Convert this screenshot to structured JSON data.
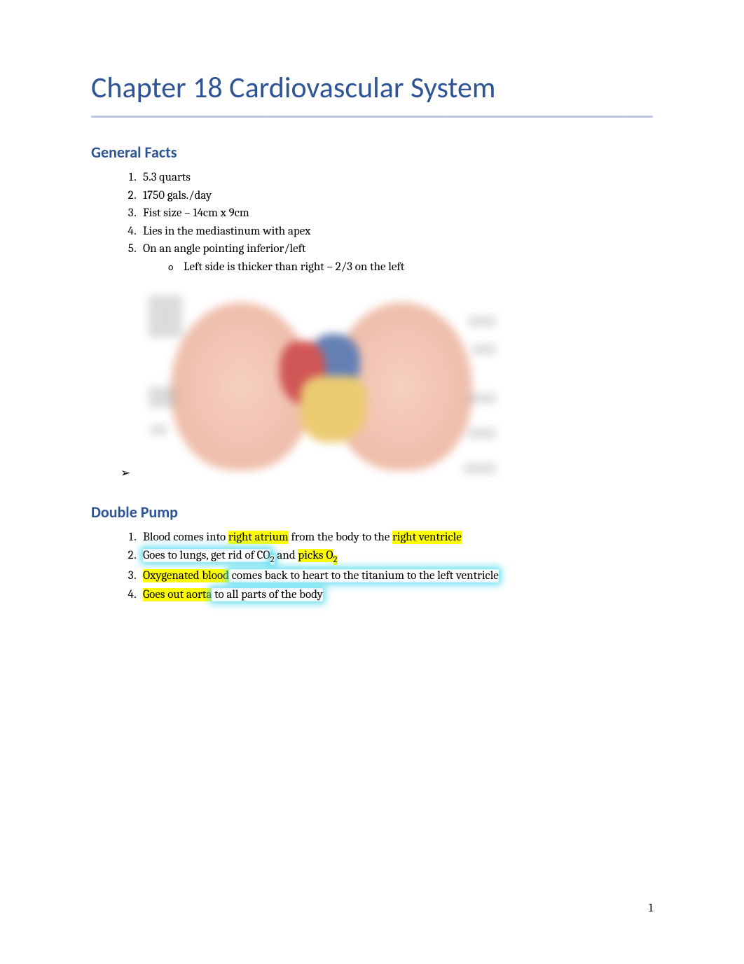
{
  "colors": {
    "heading": "#2e5496",
    "body_text": "#000000",
    "background": "#ffffff",
    "highlight_yellow": "#ffff00",
    "highlight_cyan": "#5adcf0",
    "underline_light": "#d0d8e8",
    "underline_dark": "#a8b8d8"
  },
  "typography": {
    "title_fontsize": 42,
    "heading_fontsize": 22,
    "body_fontsize": 17,
    "title_family": "Calibri",
    "body_family": "Cambria"
  },
  "title": "Chapter 18 Cardiovascular System",
  "sections": {
    "general": {
      "heading": "General Facts",
      "items": [
        "5.3 quarts",
        "1750 gals./day",
        "Fist size – 14cm x 9cm",
        "Lies in the mediastinum with apex",
        "On an angle pointing inferior/left"
      ],
      "sub_item": "Left side is thicker than right – 2/3 on the left"
    },
    "pump": {
      "heading": "Double Pump",
      "items": [
        {
          "runs": [
            {
              "t": "Blood comes into ",
              "hl": "none"
            },
            {
              "t": "right atrium",
              "hl": "yellow"
            },
            {
              "t": " from the body to the ",
              "hl": "none"
            },
            {
              "t": "right ventricle",
              "hl": "yellow"
            }
          ]
        },
        {
          "runs": [
            {
              "t": "Goes to lungs, get rid of CO",
              "hl": "cyan"
            },
            {
              "t": "2",
              "hl": "cyan",
              "sub": true
            },
            {
              "t": " and ",
              "hl": "none"
            },
            {
              "t": "picks O",
              "hl": "yellow"
            },
            {
              "t": "2",
              "hl": "yellow",
              "sub": true
            }
          ]
        },
        {
          "runs": [
            {
              "t": "Oxygenated blood",
              "hl": "yellow"
            },
            {
              "t": " comes back to heart to the titanium to the left ventricle",
              "hl": "cyan"
            }
          ]
        },
        {
          "runs": [
            {
              "t": "Goes out aorta",
              "hl": "yellow"
            },
            {
              "t": " to all parts of the body",
              "hl": "cyan"
            }
          ]
        }
      ]
    }
  },
  "image": {
    "type": "anatomical-diagram",
    "description": "heart positioned between two lungs in thoracic cavity, blurred",
    "aspect": "landscape",
    "colors": {
      "lung": "#e8a890",
      "heart_red": "#c83a38",
      "heart_blue": "#4a6aa8",
      "heart_yellow": "#e8c25a"
    }
  },
  "page_number": "1"
}
